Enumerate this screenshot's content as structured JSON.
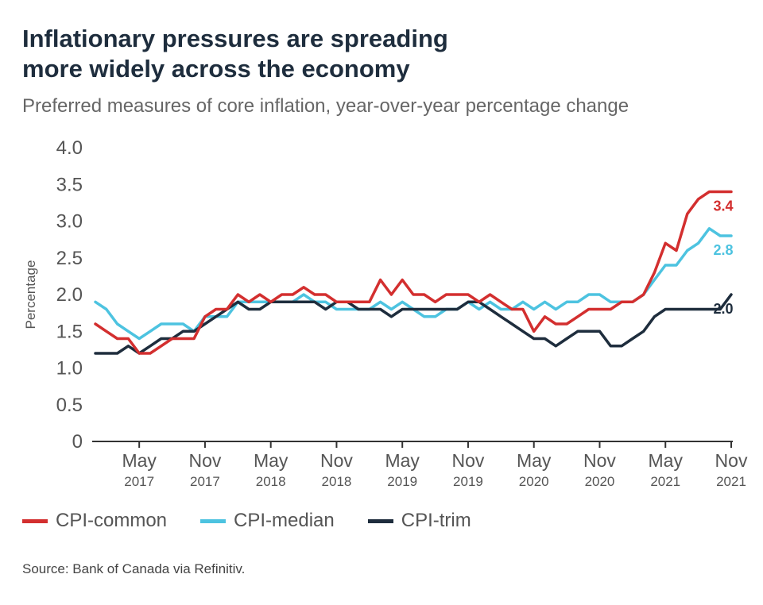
{
  "title_line1": "Inflationary pressures are spreading",
  "title_line2": "more widely across the economy",
  "subtitle": "Preferred measures of core inflation, year-over-year percentage change",
  "source": "Source: Bank of Canada via Refinitiv.",
  "chart_data": {
    "type": "line",
    "ylabel": "Percentage",
    "ylim": [
      0,
      4.0
    ],
    "y_ticks": [
      "0",
      "0.5",
      "1.0",
      "1.5",
      "2.0",
      "2.5",
      "3.0",
      "3.5",
      "4.0"
    ],
    "x_ticks": [
      {
        "month": "May",
        "year": "2017"
      },
      {
        "month": "Nov",
        "year": "2017"
      },
      {
        "month": "May",
        "year": "2018"
      },
      {
        "month": "Nov",
        "year": "2018"
      },
      {
        "month": "May",
        "year": "2019"
      },
      {
        "month": "Nov",
        "year": "2019"
      },
      {
        "month": "May",
        "year": "2020"
      },
      {
        "month": "Nov",
        "year": "2020"
      },
      {
        "month": "May",
        "year": "2021"
      },
      {
        "month": "Nov",
        "year": "2021"
      }
    ],
    "x_start": "2017-01",
    "x_end": "2021-11",
    "grid": false,
    "legend_position": "bottom",
    "series": [
      {
        "name": "CPI-common",
        "color": "#d32f2f",
        "end_label": "3.4",
        "values": [
          1.6,
          1.5,
          1.4,
          1.4,
          1.2,
          1.2,
          1.3,
          1.4,
          1.4,
          1.4,
          1.7,
          1.8,
          1.8,
          2.0,
          1.9,
          2.0,
          1.9,
          2.0,
          2.0,
          2.1,
          2.0,
          2.0,
          1.9,
          1.9,
          1.9,
          1.9,
          2.2,
          2.0,
          2.2,
          2.0,
          2.0,
          1.9,
          2.0,
          2.0,
          2.0,
          1.9,
          2.0,
          1.9,
          1.8,
          1.8,
          1.5,
          1.7,
          1.6,
          1.6,
          1.7,
          1.8,
          1.8,
          1.8,
          1.9,
          1.9,
          2.0,
          2.3,
          2.7,
          2.6,
          3.1,
          3.3,
          3.4,
          3.4,
          3.4
        ]
      },
      {
        "name": "CPI-median",
        "color": "#4dc3e0",
        "end_label": "2.8",
        "values": [
          1.9,
          1.8,
          1.6,
          1.5,
          1.4,
          1.5,
          1.6,
          1.6,
          1.6,
          1.5,
          1.7,
          1.7,
          1.7,
          1.9,
          1.9,
          1.9,
          1.9,
          1.9,
          1.9,
          2.0,
          1.9,
          1.9,
          1.8,
          1.8,
          1.8,
          1.8,
          1.9,
          1.8,
          1.9,
          1.8,
          1.7,
          1.7,
          1.8,
          1.8,
          1.9,
          1.8,
          1.9,
          1.8,
          1.8,
          1.9,
          1.8,
          1.9,
          1.8,
          1.9,
          1.9,
          2.0,
          2.0,
          1.9,
          1.9,
          1.9,
          2.0,
          2.2,
          2.4,
          2.4,
          2.6,
          2.7,
          2.9,
          2.8,
          2.8
        ]
      },
      {
        "name": "CPI-trim",
        "color": "#1e2d3d",
        "end_label": "2.0",
        "values": [
          1.2,
          1.2,
          1.2,
          1.3,
          1.2,
          1.3,
          1.4,
          1.4,
          1.5,
          1.5,
          1.6,
          1.7,
          1.8,
          1.9,
          1.8,
          1.8,
          1.9,
          1.9,
          1.9,
          1.9,
          1.9,
          1.8,
          1.9,
          1.9,
          1.8,
          1.8,
          1.8,
          1.7,
          1.8,
          1.8,
          1.8,
          1.8,
          1.8,
          1.8,
          1.9,
          1.9,
          1.8,
          1.7,
          1.6,
          1.5,
          1.4,
          1.4,
          1.3,
          1.4,
          1.5,
          1.5,
          1.5,
          1.3,
          1.3,
          1.4,
          1.5,
          1.7,
          1.8,
          1.8,
          1.8,
          1.8,
          1.8,
          1.8,
          2.0
        ]
      }
    ]
  }
}
